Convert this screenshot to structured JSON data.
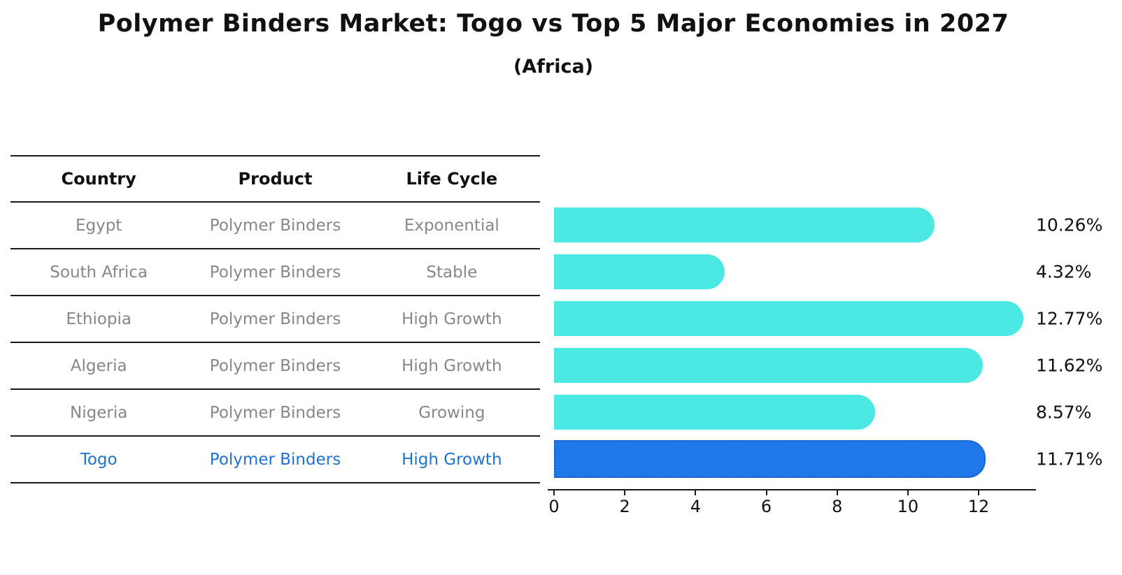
{
  "chart": {
    "title": "Polymer Binders Market: Togo vs Top 5 Major Economies in 2027",
    "subtitle": "(Africa)"
  },
  "table": {
    "headers": [
      "Country",
      "Product",
      "Life Cycle"
    ],
    "rows": [
      {
        "country": "Egypt",
        "product": "Polymer Binders",
        "life_cycle": "Exponential",
        "highlight": false
      },
      {
        "country": "South Africa",
        "product": "Polymer Binders",
        "life_cycle": "Stable",
        "highlight": false
      },
      {
        "country": "Ethiopia",
        "product": "Polymer Binders",
        "life_cycle": "High Growth",
        "highlight": false
      },
      {
        "country": "Algeria",
        "product": "Polymer Binders",
        "life_cycle": "High Growth",
        "highlight": false
      },
      {
        "country": "Nigeria",
        "product": "Polymer Binders",
        "life_cycle": "Growing",
        "highlight": false
      },
      {
        "country": "Togo",
        "product": "Polymer Binders",
        "life_cycle": "High Growth",
        "highlight": true
      }
    ]
  },
  "chart_data": {
    "type": "bar",
    "orientation": "horizontal",
    "title": "Polymer Binders Market: Togo vs Top 5 Major Economies in 2027 (Africa)",
    "categories": [
      "Egypt",
      "South Africa",
      "Ethiopia",
      "Algeria",
      "Nigeria",
      "Togo"
    ],
    "values": [
      10.26,
      4.32,
      12.77,
      11.62,
      8.57,
      11.71
    ],
    "value_labels": [
      "10.26%",
      "4.32%",
      "12.77%",
      "11.62%",
      "8.57%",
      "11.71%"
    ],
    "highlight_index": 5,
    "x_ticks": [
      0,
      2,
      4,
      6,
      8,
      10,
      12
    ],
    "xlim": [
      0,
      13.6
    ],
    "xlabel": "",
    "ylabel": "",
    "grid": false,
    "legend": "none"
  },
  "colors": {
    "bar_default": "#4be8e4",
    "bar_highlight": "#1e78e8",
    "bar_highlight_border": "#1855b8",
    "table_text": "#878787",
    "highlight_text": "#1e73d2",
    "axis": "#1a1a1a",
    "text": "#111111"
  }
}
